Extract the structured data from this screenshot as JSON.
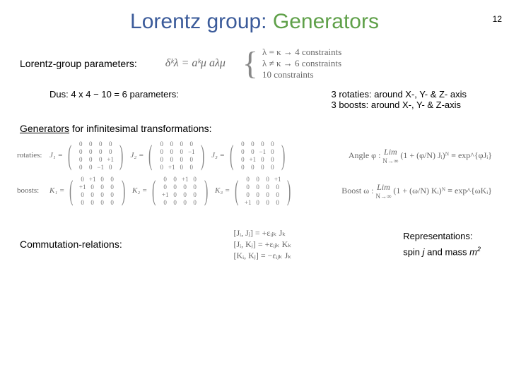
{
  "page_number": "12",
  "title": {
    "part1": "Lorentz",
    "part2": "group:",
    "part3": "Generators",
    "color_lorentz": "#3b5b9a",
    "color_generators": "#5fa049",
    "fontsize": 30
  },
  "section1": {
    "label": "Lorentz-group parameters:",
    "eq": "δᵏλ = aᵏμ aλμ",
    "brace": {
      "line1": "λ = κ  →   4 constraints",
      "line2": "λ ≠ κ  →   6 constraints",
      "line3": "              10 constraints"
    }
  },
  "counts": {
    "left": "Dus: 4 x 4 − 10 = 6 parameters:",
    "right1": "3 rotaties: around X-, Y- & Z- axis",
    "right2": "3 boosts: around X-, Y- & Z-axis"
  },
  "section2": {
    "label_u": "Generators",
    "label_rest": " for infinitesimal transformations:"
  },
  "matrices": {
    "row_labels": [
      "rotaties:",
      "boosts:"
    ],
    "J": [
      {
        "name": "J₁ =",
        "m": [
          [
            "0",
            "0",
            "0",
            "0"
          ],
          [
            "0",
            "0",
            "0",
            "0"
          ],
          [
            "0",
            "0",
            "0",
            "+1"
          ],
          [
            "0",
            "0",
            "−1",
            "0"
          ]
        ]
      },
      {
        "name": "J₂ =",
        "m": [
          [
            "0",
            "0",
            "0",
            "0"
          ],
          [
            "0",
            "0",
            "0",
            "−1"
          ],
          [
            "0",
            "0",
            "0",
            "0"
          ],
          [
            "0",
            "+1",
            "0",
            "0"
          ]
        ]
      },
      {
        "name": "J₃ =",
        "m": [
          [
            "0",
            "0",
            "0",
            "0"
          ],
          [
            "0",
            "0",
            "−1",
            "0"
          ],
          [
            "0",
            "+1",
            "0",
            "0"
          ],
          [
            "0",
            "0",
            "0",
            "0"
          ]
        ]
      }
    ],
    "K": [
      {
        "name": "K₁ =",
        "m": [
          [
            "0",
            "+1",
            "0",
            "0"
          ],
          [
            "+1",
            "0",
            "0",
            "0"
          ],
          [
            "0",
            "0",
            "0",
            "0"
          ],
          [
            "0",
            "0",
            "0",
            "0"
          ]
        ]
      },
      {
        "name": "K₂ =",
        "m": [
          [
            "0",
            "0",
            "+1",
            "0"
          ],
          [
            "0",
            "0",
            "0",
            "0"
          ],
          [
            "+1",
            "0",
            "0",
            "0"
          ],
          [
            "0",
            "0",
            "0",
            "0"
          ]
        ]
      },
      {
        "name": "K₃ =",
        "m": [
          [
            "0",
            "0",
            "0",
            "+1"
          ],
          [
            "0",
            "0",
            "0",
            "0"
          ],
          [
            "0",
            "0",
            "0",
            "0"
          ],
          [
            "+1",
            "0",
            "0",
            "0"
          ]
        ]
      }
    ],
    "angle_label": "Angle φ :",
    "angle_expr": "(1 + (φ/N) Jᵢ)ᴺ ≡ exp^{φJᵢ}",
    "boost_label": "Boost ω :",
    "boost_expr": "(1 + (ω/N) Kᵢ)ᴺ ≡ exp^{ωKᵢ}",
    "lim_top": "Lim",
    "lim_bot": "N→∞"
  },
  "bottom": {
    "comm_label": "Commutation-relations:",
    "eq1": "[Jᵢ, Jⱼ] = +εᵢⱼₖ Jₖ",
    "eq2": "[Jᵢ, Kⱼ] = +εᵢⱼₖ Kₖ",
    "eq3": "[Kᵢ, Kⱼ] = −εᵢⱼₖ Jₖ",
    "reps_l1": "Representations:",
    "reps_l2_a": "spin ",
    "reps_l2_j": "j",
    "reps_l2_b": " and mass ",
    "reps_l2_m": "m",
    "reps_l2_sq": "2"
  },
  "colors": {
    "text_muted": "#666666",
    "background": "#ffffff"
  }
}
